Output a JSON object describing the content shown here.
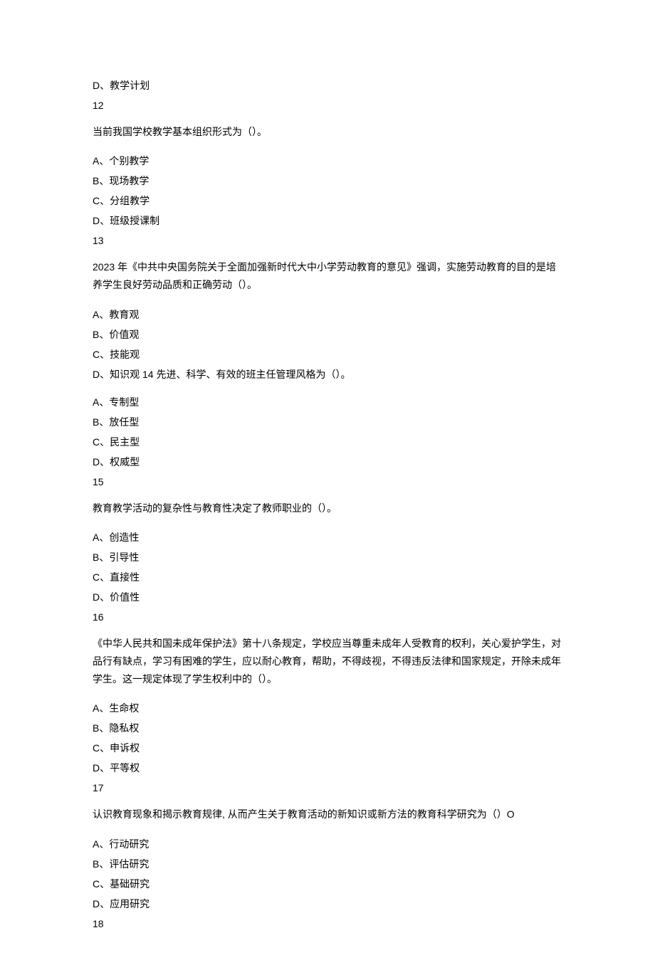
{
  "q11_tail": {
    "optionD": "D、教学计划",
    "number": "12"
  },
  "q12": {
    "text": "当前我国学校教学基本组织形式为（）。",
    "optionA": "A、个别教学",
    "optionB": "B、现场教学",
    "optionC": "C、分组教学",
    "optionD": "D、班级授课制",
    "number": "13"
  },
  "q13": {
    "text": "2023 年《中共中央国务院关于全面加强新时代大中小学劳动教育的意见》强调，实施劳动教育的目的是培养学生良好劳动品质和正确劳动（）。",
    "optionA": "A、教育观",
    "optionB": "B、价值观",
    "optionC": "C、技能观",
    "optionD_with_14": "D、知识观 14 先进、科学、有效的班主任管理风格为（）。"
  },
  "q14": {
    "optionA": "A、专制型",
    "optionB": "B、放任型",
    "optionC": "C、民主型",
    "optionD": "D、权威型",
    "number": "15"
  },
  "q15": {
    "text": "教育教学活动的复杂性与教育性决定了教师职业的（）。",
    "optionA": "A、创造性",
    "optionB": "B、引导性",
    "optionC": "C、直接性",
    "optionD": "D、价值性",
    "number": "16"
  },
  "q16": {
    "text": "《中华人民共和国未成年保护法》第十八条规定，学校应当尊重未成年人受教育的权利，关心爱护学生，对品行有缺点，学习有困难的学生，应以耐心教育，帮助，不得歧视，不得违反法律和国家规定，开除未成年学生。这一规定体现了学生权利中的（）。",
    "optionA": "A、生命权",
    "optionB": "B、隐私权",
    "optionC": "C、申诉权",
    "optionD": "D、平等权",
    "number": "17"
  },
  "q17": {
    "text": "认识教育现象和揭示教育规律, 从而产生关于教育活动的新知识或新方法的教育科学研究为（）O",
    "optionA": "A、行动研究",
    "optionB": "B、评估研究",
    "optionC": "C、基础研究",
    "optionD": "D、应用研究",
    "number": "18"
  }
}
